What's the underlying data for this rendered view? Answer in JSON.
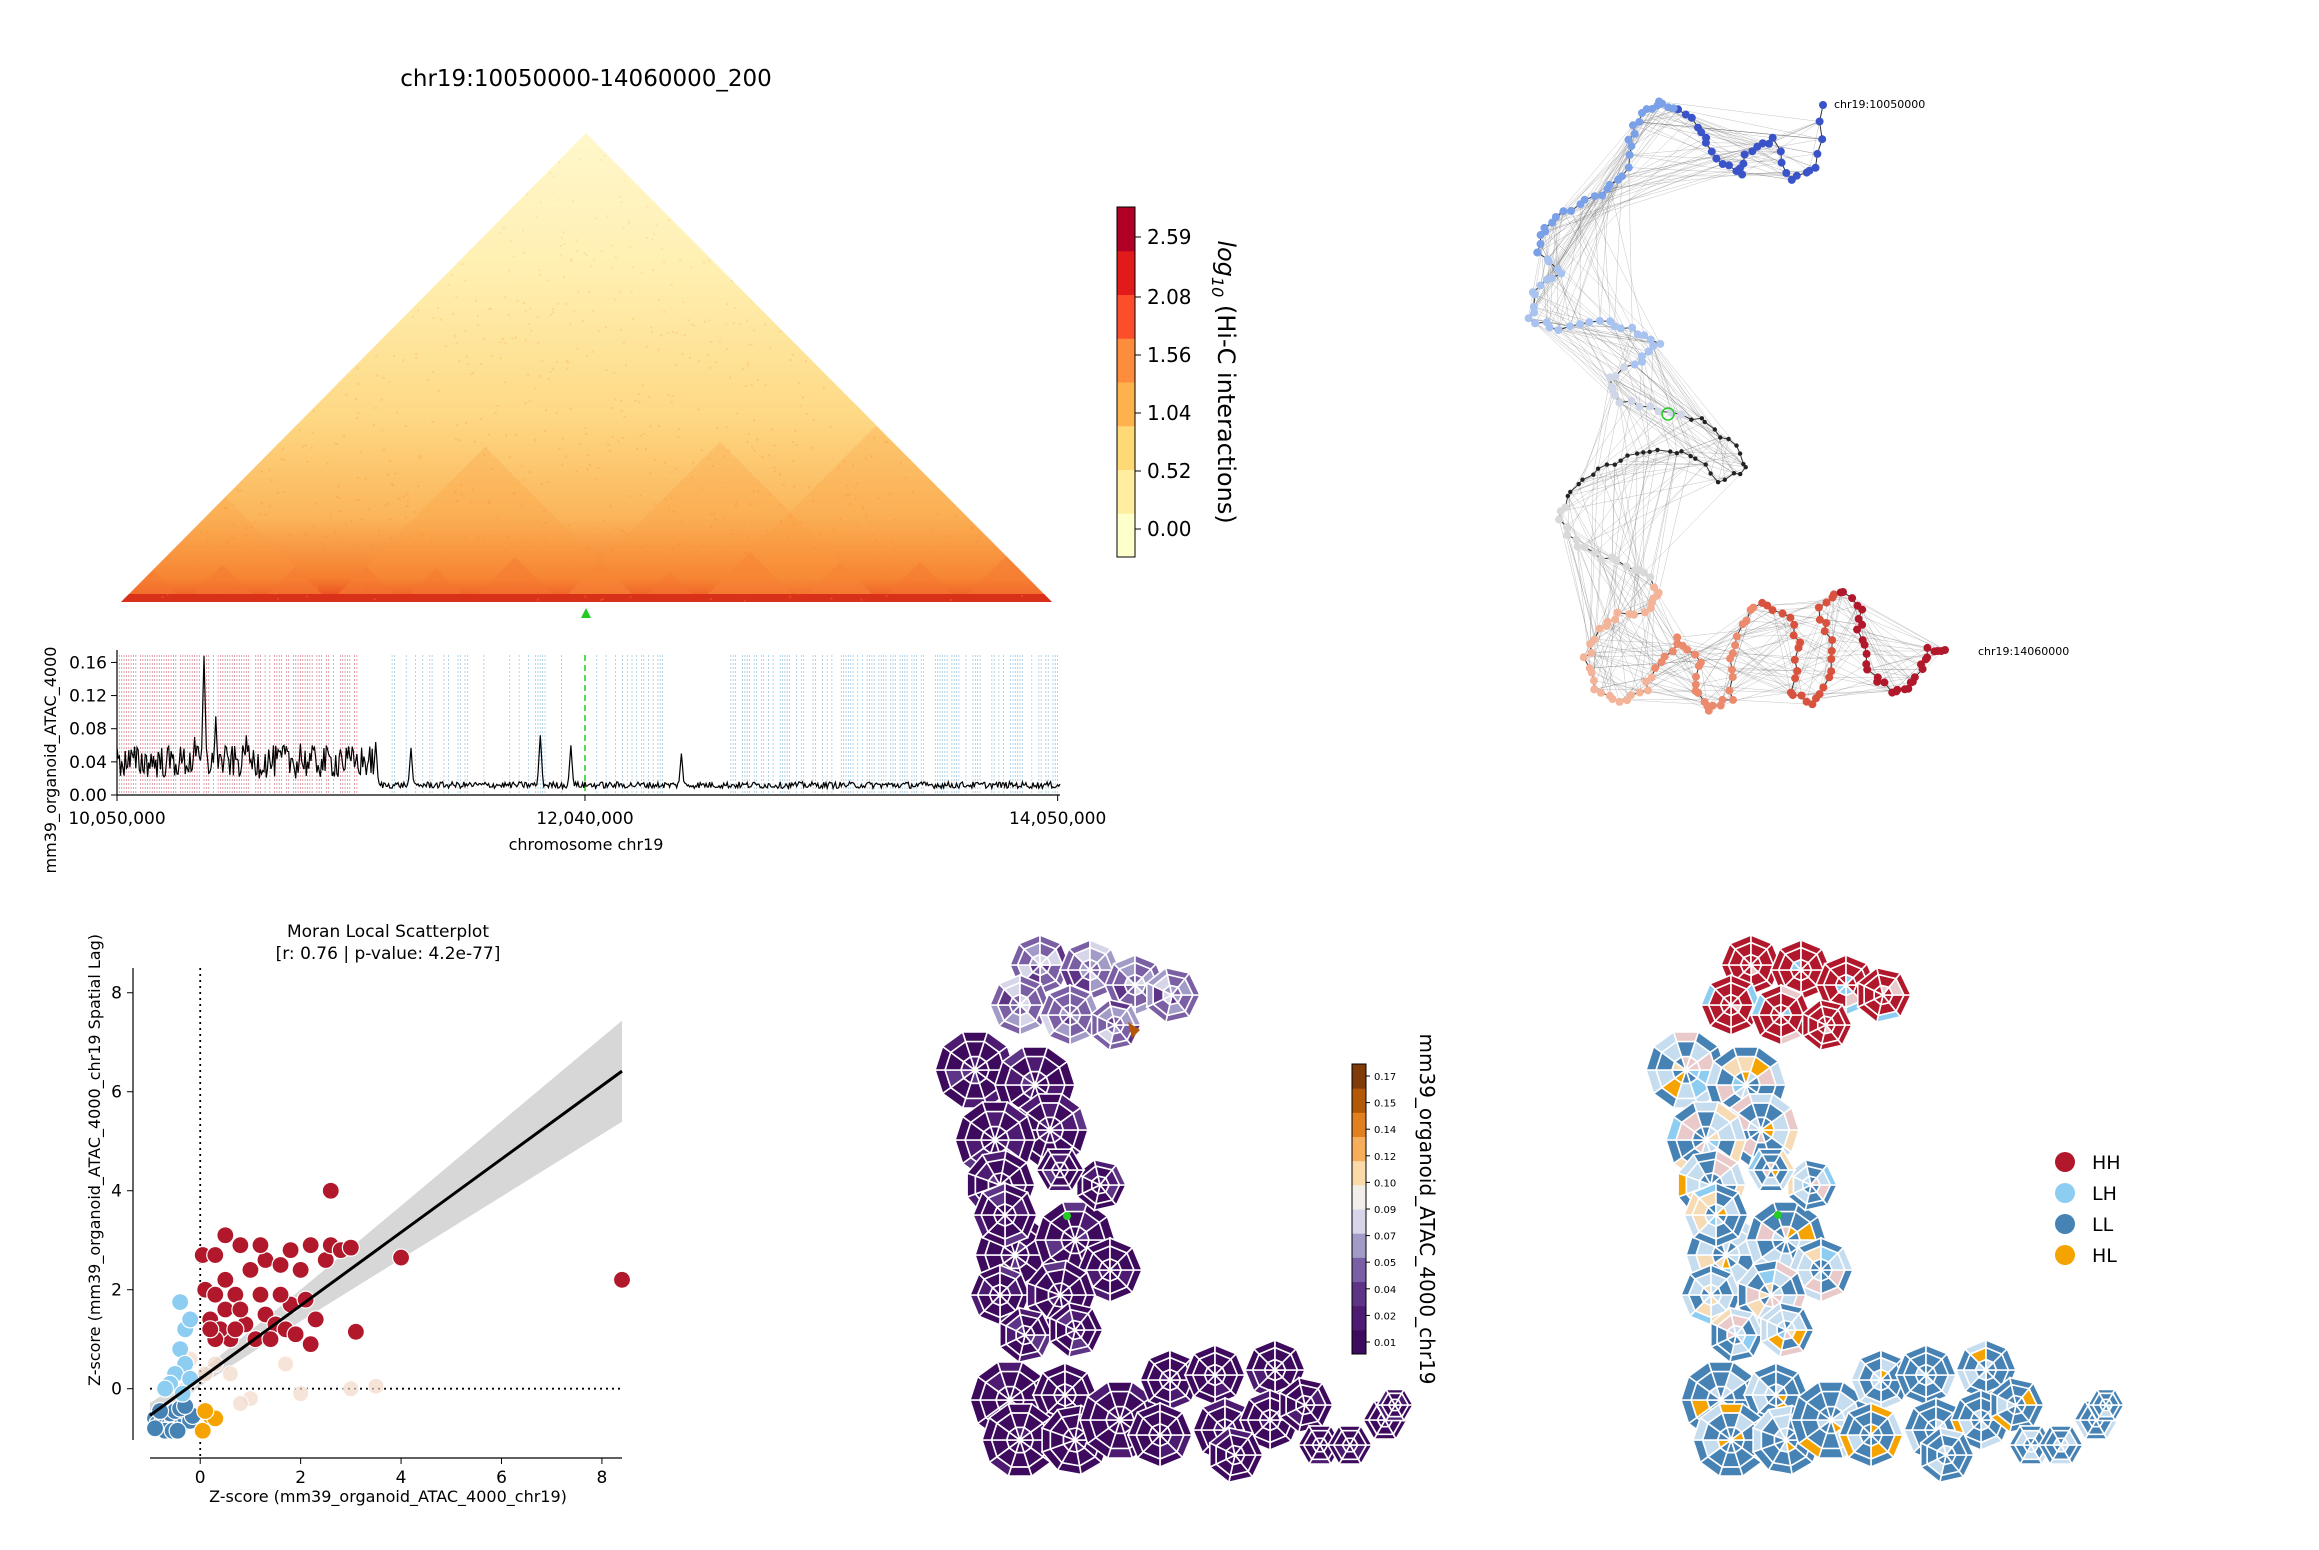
{
  "chart_data": [
    {
      "type": "heatmap",
      "title": "chr19:10050000-14060000_200",
      "colorbar": {
        "label": "log10 (Hi-C interactions)",
        "label_main": "log",
        "label_sub": "10",
        "label_rest": " (Hi-C interactions)",
        "ticks": [
          "0.00",
          "0.52",
          "1.04",
          "1.56",
          "2.08",
          "2.59"
        ],
        "colors": [
          "#ffffcc",
          "#ffeda0",
          "#fed976",
          "#feb24c",
          "#fd8d3c",
          "#fc4e2a",
          "#e31a1c",
          "#b10026"
        ]
      },
      "viewpoint_marker_color": "#22cc22"
    },
    {
      "type": "line",
      "xlabel": "chromosome chr19",
      "ylabel": "mm39_organoid_ATAC_4000",
      "xticks": [
        "10,050,000",
        "12,040,000",
        "14,050,000"
      ],
      "yticks": [
        "0.00",
        "0.04",
        "0.08",
        "0.12",
        "0.16"
      ],
      "xlim": [
        10050000,
        14060000
      ],
      "ylim": [
        0,
        0.175
      ],
      "viewpoint": 12040000,
      "peaks": [
        {
          "x": 10420000,
          "y": 0.168
        },
        {
          "x": 10380000,
          "y": 0.07
        },
        {
          "x": 10470000,
          "y": 0.095
        },
        {
          "x": 10600000,
          "y": 0.072
        },
        {
          "x": 10760000,
          "y": 0.06
        },
        {
          "x": 10830000,
          "y": 0.062
        },
        {
          "x": 11000000,
          "y": 0.055
        },
        {
          "x": 11150000,
          "y": 0.064
        },
        {
          "x": 11300000,
          "y": 0.057
        },
        {
          "x": 11850000,
          "y": 0.072
        },
        {
          "x": 11980000,
          "y": 0.06
        },
        {
          "x": 12450000,
          "y": 0.05
        }
      ],
      "colors": {
        "line": "#000000",
        "high": "#b2182b",
        "low": "#4393c3",
        "viewpoint": "#22cc22"
      }
    },
    {
      "type": "network",
      "labels": [
        "chr19:10050000",
        "chr19:14060000"
      ],
      "colors": [
        "#3a53c9",
        "#7aa0e8",
        "#a8c3f0",
        "#cfd6e8",
        "#d9d9d9",
        "#f4b49a",
        "#ec8a6e",
        "#d8523e",
        "#b2182b"
      ]
    },
    {
      "type": "scatter",
      "title": "Moran Local Scatterplot",
      "subtitle": "[r: 0.76 | p-value: 4.2e-77]",
      "xlabel": "Z-score (mm39_organoid_ATAC_4000_chr19)",
      "ylabel": "Z-score (mm39_organoid_ATAC_4000_chr19 Spatial Lag)",
      "xticks": [
        "0",
        "2",
        "4",
        "6",
        "8"
      ],
      "yticks": [
        "0",
        "2",
        "4",
        "6",
        "8"
      ],
      "xlim": [
        -1.0,
        8.4
      ],
      "ylim": [
        -1.4,
        8.5
      ],
      "regression": {
        "slope": 0.74,
        "intercept": 0.2
      },
      "points": {
        "HH": [
          [
            0.05,
            2.7
          ],
          [
            0.3,
            2.7
          ],
          [
            0.5,
            3.1
          ],
          [
            0.8,
            2.9
          ],
          [
            0.1,
            2.0
          ],
          [
            0.3,
            1.9
          ],
          [
            0.5,
            1.6
          ],
          [
            0.2,
            1.4
          ],
          [
            0.7,
            1.9
          ],
          [
            1.0,
            2.4
          ],
          [
            1.3,
            2.6
          ],
          [
            1.2,
            2.9
          ],
          [
            1.6,
            2.5
          ],
          [
            1.8,
            2.8
          ],
          [
            2.0,
            2.4
          ],
          [
            2.2,
            2.9
          ],
          [
            2.5,
            2.6
          ],
          [
            2.6,
            2.9
          ],
          [
            2.8,
            2.8
          ],
          [
            3.0,
            2.85
          ],
          [
            3.1,
            1.15
          ],
          [
            4.0,
            2.65
          ],
          [
            2.6,
            4.0
          ],
          [
            1.3,
            1.5
          ],
          [
            0.9,
            1.3
          ],
          [
            1.5,
            1.3
          ],
          [
            1.8,
            1.7
          ],
          [
            2.1,
            1.8
          ],
          [
            2.3,
            1.4
          ],
          [
            0.6,
            1.0
          ],
          [
            0.4,
            1.2
          ],
          [
            1.1,
            1.0
          ],
          [
            1.4,
            1.0
          ],
          [
            1.7,
            1.2
          ],
          [
            2.2,
            0.9
          ],
          [
            0.3,
            1.0
          ],
          [
            0.8,
            1.6
          ],
          [
            1.9,
            1.1
          ],
          [
            1.2,
            1.9
          ],
          [
            0.5,
            2.2
          ],
          [
            0.2,
            1.2
          ],
          [
            1.6,
            1.9
          ],
          [
            8.4,
            2.2
          ],
          [
            0.7,
            1.2
          ]
        ],
        "LH": [
          [
            -0.4,
            1.75
          ],
          [
            -0.3,
            1.2
          ],
          [
            -0.2,
            1.4
          ],
          [
            -0.4,
            0.8
          ],
          [
            -0.3,
            0.5
          ],
          [
            -0.5,
            0.3
          ],
          [
            -0.6,
            0.1
          ],
          [
            -0.2,
            0.2
          ],
          [
            -0.7,
            0.0
          ],
          [
            -0.35,
            -0.1
          ]
        ],
        "LL": [
          [
            -0.9,
            -0.6
          ],
          [
            -0.85,
            -0.7
          ],
          [
            -0.8,
            -0.75
          ],
          [
            -0.75,
            -0.55
          ],
          [
            -0.7,
            -0.65
          ],
          [
            -0.65,
            -0.8
          ],
          [
            -0.6,
            -0.7
          ],
          [
            -0.55,
            -0.6
          ],
          [
            -0.5,
            -0.75
          ],
          [
            -0.45,
            -0.65
          ],
          [
            -0.4,
            -0.55
          ],
          [
            -0.35,
            -0.7
          ],
          [
            -0.3,
            -0.6
          ],
          [
            -0.25,
            -0.5
          ],
          [
            -0.2,
            -0.65
          ],
          [
            -0.15,
            -0.55
          ],
          [
            -0.6,
            -0.5
          ],
          [
            -0.5,
            -0.45
          ],
          [
            -0.4,
            -0.4
          ],
          [
            -0.3,
            -0.35
          ],
          [
            -0.8,
            -0.45
          ],
          [
            -0.7,
            -0.85
          ],
          [
            -0.55,
            -0.85
          ],
          [
            -0.45,
            -0.85
          ],
          [
            -0.9,
            -0.8
          ]
        ],
        "HL": [
          [
            0.05,
            -0.85
          ],
          [
            0.2,
            -0.55
          ],
          [
            0.3,
            -0.6
          ],
          [
            0.1,
            -0.45
          ]
        ],
        "ns": [
          [
            0.3,
            0.5
          ],
          [
            0.6,
            0.3
          ],
          [
            1.0,
            -0.2
          ],
          [
            1.7,
            0.5
          ],
          [
            2.0,
            -0.1
          ],
          [
            3.0,
            0.0
          ],
          [
            3.5,
            0.05
          ],
          [
            0.8,
            -0.3
          ],
          [
            -0.2,
            0.6
          ],
          [
            0.1,
            0.3
          ]
        ]
      },
      "colors": {
        "HH": "#b2182b",
        "LH": "#8ecdf2",
        "LL": "#4682b4",
        "HL": "#f5a300",
        "ns_light": "#f4d9c9",
        "ns_blue": "#c6dcef"
      }
    },
    {
      "type": "heatmap",
      "subtype": "voronoi-map",
      "colorbar": {
        "label": "mm39_organoid_ATAC_4000_chr19",
        "ticks": [
          "0.01",
          "0.02",
          "0.04",
          "0.05",
          "0.07",
          "0.09",
          "0.10",
          "0.12",
          "0.14",
          "0.15",
          "0.17"
        ],
        "colors": [
          "#3d0a5e",
          "#4d1c72",
          "#5e3486",
          "#7a5fa4",
          "#a39bc7",
          "#d7d5e8",
          "#f2efea",
          "#fcd9a8",
          "#f7ae5c",
          "#e0801f",
          "#b35806",
          "#7f3b08"
        ]
      }
    },
    {
      "type": "heatmap",
      "subtype": "lisa-cluster-map",
      "legend": [
        {
          "label": "HH",
          "color": "#b2182b"
        },
        {
          "label": "LH",
          "color": "#8ecdf2"
        },
        {
          "label": "LL",
          "color": "#4682b4"
        },
        {
          "label": "HL",
          "color": "#f5a300"
        }
      ],
      "legend_position": "right"
    }
  ]
}
